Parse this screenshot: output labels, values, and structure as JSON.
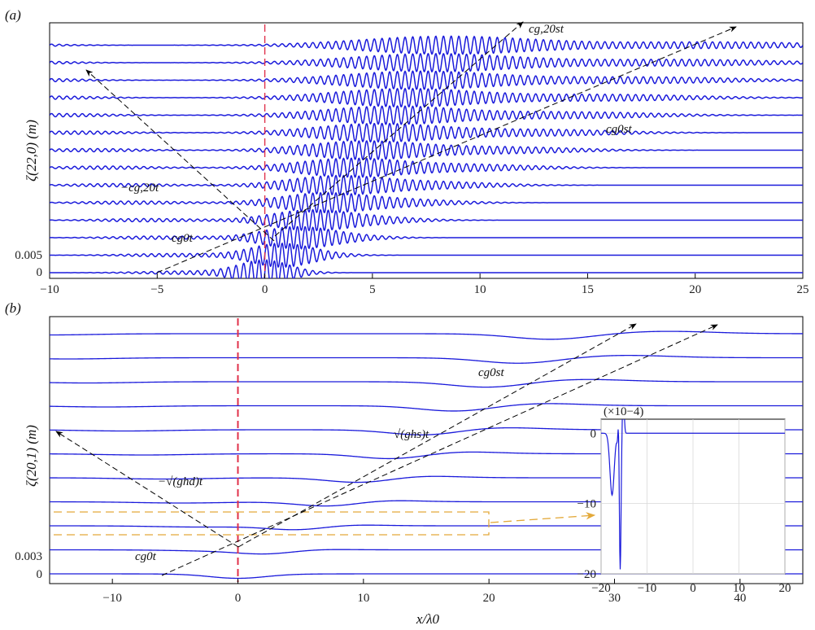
{
  "chart_data": [
    {
      "type": "line",
      "panel_label": "(a)",
      "xlim": [
        -10,
        25
      ],
      "x_ticks": [
        "−10",
        "−5",
        "0",
        "5",
        "10",
        "15",
        "20",
        "25"
      ],
      "y_ticks": [
        "0",
        "0.005"
      ],
      "ylabel": "ζ(22,0) (m)",
      "trace_count": 14,
      "trace_spacing": 0.005,
      "line_color": "#1a1adb",
      "reference_color": "#e0304a",
      "reference_x": 0,
      "annotations": [
        "cg,20st",
        "cg0st",
        "−cg,20t",
        "cg0t"
      ]
    },
    {
      "type": "line",
      "panel_label": "(b)",
      "xlim": [
        -15,
        45
      ],
      "x_ticks": [
        "−10",
        "0",
        "10",
        "20",
        "30",
        "40"
      ],
      "y_ticks": [
        "0",
        "0.003"
      ],
      "xlabel": "x/λ0",
      "ylabel": "ζ(20,1) (m)",
      "trace_count": 11,
      "trace_spacing": 0.003,
      "line_color": "#1a1adb",
      "reference_color": "#e0304a",
      "highlight_color": "#e3a93a",
      "reference_x": 0,
      "annotations": [
        "cg0st",
        "√(ghs)t",
        "−√(ghd)t",
        "cg0t"
      ],
      "inset": {
        "type": "line",
        "multiplier": "(×10−4)",
        "xlim": [
          -20,
          20
        ],
        "ylim": [
          -20,
          2
        ],
        "x_ticks": [
          "−20",
          "−10",
          "0",
          "10",
          "20"
        ],
        "y_ticks": [
          "0",
          "−10",
          "−20"
        ],
        "grid": true,
        "min_value": -19.5,
        "min_x": 3.5
      }
    }
  ]
}
